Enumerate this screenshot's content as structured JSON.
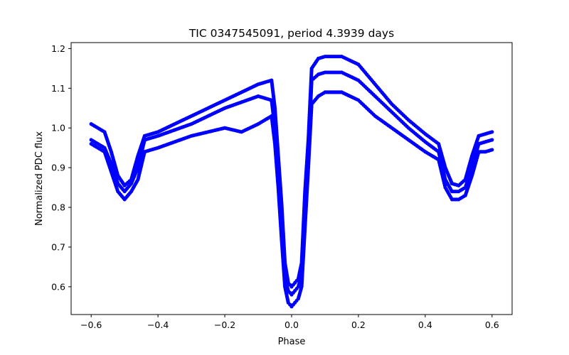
{
  "chart_data": {
    "type": "scatter",
    "title": "TIC 0347545091, period 4.3939 days",
    "xlabel": "Phase",
    "ylabel": "Normalized PDC flux",
    "xlim": [
      -0.66,
      0.66
    ],
    "ylim": [
      0.53,
      1.215
    ],
    "xticks": [
      -0.6,
      -0.4,
      -0.2,
      0.0,
      0.2,
      0.4,
      0.6
    ],
    "xtick_labels": [
      "−0.6",
      "−0.4",
      "−0.2",
      "0.0",
      "0.2",
      "0.4",
      "0.6"
    ],
    "yticks": [
      0.6,
      0.7,
      0.8,
      0.9,
      1.0,
      1.1,
      1.2
    ],
    "ytick_labels": [
      "0.6",
      "0.7",
      "0.8",
      "0.9",
      "1.0",
      "1.1",
      "1.2"
    ],
    "grid": false,
    "marker_color": "#0000ff",
    "series": [
      {
        "x": [
          -0.6,
          -0.58,
          -0.56,
          -0.54,
          -0.52,
          -0.5,
          -0.48,
          -0.46,
          -0.44,
          -0.4,
          -0.3,
          -0.2,
          -0.1,
          -0.06,
          -0.05,
          -0.04,
          -0.03,
          -0.02,
          -0.01,
          0.0,
          0.01,
          0.02,
          0.03,
          0.04,
          0.05,
          0.06,
          0.08,
          0.1,
          0.15,
          0.2,
          0.25,
          0.3,
          0.35,
          0.4,
          0.44,
          0.46,
          0.48,
          0.5,
          0.52,
          0.54,
          0.56,
          0.58,
          0.6
        ],
        "y": [
          1.01,
          1.0,
          0.99,
          0.94,
          0.88,
          0.855,
          0.87,
          0.93,
          0.98,
          0.99,
          1.03,
          1.07,
          1.11,
          1.12,
          1.05,
          0.93,
          0.81,
          0.66,
          0.61,
          0.6,
          0.61,
          0.62,
          0.66,
          0.84,
          0.97,
          1.15,
          1.175,
          1.18,
          1.18,
          1.16,
          1.11,
          1.06,
          1.02,
          0.985,
          0.96,
          0.9,
          0.86,
          0.855,
          0.87,
          0.93,
          0.98,
          0.985,
          0.99
        ]
      },
      {
        "x": [
          -0.6,
          -0.58,
          -0.56,
          -0.54,
          -0.52,
          -0.5,
          -0.48,
          -0.46,
          -0.44,
          -0.4,
          -0.3,
          -0.2,
          -0.1,
          -0.06,
          -0.05,
          -0.04,
          -0.03,
          -0.02,
          -0.01,
          0.0,
          0.01,
          0.02,
          0.03,
          0.04,
          0.05,
          0.06,
          0.08,
          0.1,
          0.15,
          0.2,
          0.25,
          0.3,
          0.35,
          0.4,
          0.44,
          0.46,
          0.48,
          0.5,
          0.52,
          0.54,
          0.56,
          0.58,
          0.6
        ],
        "y": [
          0.97,
          0.96,
          0.95,
          0.91,
          0.86,
          0.84,
          0.86,
          0.9,
          0.97,
          0.98,
          1.01,
          1.05,
          1.08,
          1.07,
          1.0,
          0.89,
          0.75,
          0.62,
          0.59,
          0.58,
          0.59,
          0.6,
          0.63,
          0.78,
          0.93,
          1.12,
          1.135,
          1.14,
          1.14,
          1.12,
          1.08,
          1.04,
          1.0,
          0.965,
          0.94,
          0.87,
          0.84,
          0.84,
          0.85,
          0.9,
          0.96,
          0.965,
          0.97
        ]
      },
      {
        "x": [
          -0.6,
          -0.58,
          -0.56,
          -0.54,
          -0.52,
          -0.5,
          -0.48,
          -0.46,
          -0.44,
          -0.4,
          -0.3,
          -0.2,
          -0.15,
          -0.1,
          -0.06,
          -0.05,
          -0.04,
          -0.03,
          -0.02,
          -0.01,
          0.0,
          0.01,
          0.02,
          0.03,
          0.04,
          0.05,
          0.06,
          0.08,
          0.1,
          0.15,
          0.2,
          0.25,
          0.3,
          0.35,
          0.4,
          0.44,
          0.46,
          0.48,
          0.5,
          0.52,
          0.54,
          0.56,
          0.58,
          0.6
        ],
        "y": [
          0.96,
          0.95,
          0.94,
          0.89,
          0.84,
          0.82,
          0.84,
          0.87,
          0.94,
          0.95,
          0.98,
          1.0,
          0.99,
          1.01,
          1.03,
          0.96,
          0.85,
          0.72,
          0.6,
          0.56,
          0.55,
          0.56,
          0.57,
          0.6,
          0.75,
          0.9,
          1.06,
          1.08,
          1.09,
          1.09,
          1.07,
          1.03,
          1.0,
          0.97,
          0.94,
          0.92,
          0.85,
          0.82,
          0.82,
          0.83,
          0.88,
          0.94,
          0.94,
          0.945
        ]
      }
    ]
  }
}
